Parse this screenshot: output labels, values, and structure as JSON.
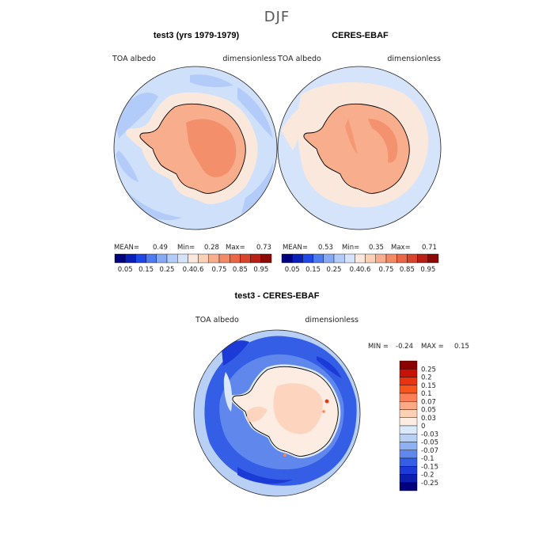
{
  "title": "DJF",
  "panels": [
    {
      "heading": "test3 (yrs 1979-1979)",
      "left_label": "TOA albedo",
      "right_label": "dimensionless",
      "stats": {
        "mean_label": "MEAN=",
        "mean": "0.49",
        "min_label": "Min=",
        "min": "0.28",
        "max_label": "Max=",
        "max": "0.73"
      }
    },
    {
      "heading": "CERES-EBAF",
      "left_label": "TOA albedo",
      "right_label": "dimensionless",
      "stats": {
        "mean_label": "MEAN=",
        "mean": "0.53",
        "min_label": "Min=",
        "min": "0.35",
        "max_label": "Max=",
        "max": "0.71"
      }
    }
  ],
  "diff_panel": {
    "heading": "test3 - CERES-EBAF",
    "left_label": "TOA albedo",
    "right_label": "dimensionless",
    "min_label": "MIN =",
    "min": "-0.24",
    "max_label": "MAX =",
    "max": "0.15"
  },
  "chart_data": [
    {
      "type": "heatmap",
      "subtype": "polar-stereographic map",
      "title": "test3 (yrs 1979-1979)",
      "variable": "TOA albedo",
      "units": "dimensionless",
      "season": "DJF",
      "colorbar": {
        "orientation": "horizontal",
        "labels": [
          "0.05",
          "0.15",
          "0.25",
          "0.4",
          "0.6",
          "0.75",
          "0.85",
          "0.95"
        ],
        "colors": [
          "#00007f",
          "#0a1fb8",
          "#1f48e6",
          "#4e7bf0",
          "#86a9f5",
          "#b3cbf9",
          "#d6e4fb",
          "#fbe8dc",
          "#fbd0b4",
          "#f8ae8c",
          "#f38a66",
          "#ea6646",
          "#d9452c",
          "#b81f16",
          "#8b0a05"
        ]
      },
      "stats": {
        "mean": 0.49,
        "min": 0.28,
        "max": 0.73
      }
    },
    {
      "type": "heatmap",
      "subtype": "polar-stereographic map",
      "title": "CERES-EBAF",
      "variable": "TOA albedo",
      "units": "dimensionless",
      "season": "DJF",
      "colorbar": {
        "orientation": "horizontal",
        "labels": [
          "0.05",
          "0.15",
          "0.25",
          "0.4",
          "0.6",
          "0.75",
          "0.85",
          "0.95"
        ],
        "colors": [
          "#00007f",
          "#0a1fb8",
          "#1f48e6",
          "#4e7bf0",
          "#86a9f5",
          "#b3cbf9",
          "#d6e4fb",
          "#fbe8dc",
          "#fbd0b4",
          "#f8ae8c",
          "#f38a66",
          "#ea6646",
          "#d9452c",
          "#b81f16",
          "#8b0a05"
        ]
      },
      "stats": {
        "mean": 0.53,
        "min": 0.35,
        "max": 0.71
      }
    },
    {
      "type": "heatmap",
      "subtype": "polar-stereographic map",
      "title": "test3 - CERES-EBAF",
      "variable": "TOA albedo",
      "units": "dimensionless",
      "season": "DJF",
      "colorbar": {
        "orientation": "vertical",
        "labels": [
          "0.25",
          "0.2",
          "0.15",
          "0.1",
          "0.07",
          "0.05",
          "0.03",
          "0",
          "-0.03",
          "-0.05",
          "-0.07",
          "-0.1",
          "-0.15",
          "-0.2",
          "-0.25"
        ],
        "colors": [
          "#8b0000",
          "#c81208",
          "#e8340f",
          "#f8541c",
          "#fb8058",
          "#fcaa86",
          "#fcd0b5",
          "#fcece2",
          "#dbe8f9",
          "#b8d0f6",
          "#8fb0f2",
          "#5f87ec",
          "#345ee6",
          "#1c3bd6",
          "#0c1fae",
          "#00007f"
        ]
      },
      "stats": {
        "min": -0.24,
        "max": 0.15
      }
    }
  ]
}
